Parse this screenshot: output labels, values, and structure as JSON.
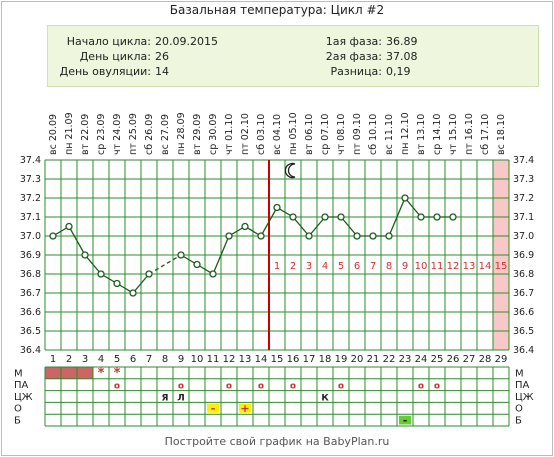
{
  "title": "Базальная температура: Цикл #2",
  "info": {
    "cycle_start_label": "Начало цикла:",
    "cycle_start_value": "20.09.2015",
    "cycle_day_label": "День цикла:",
    "cycle_day_value": "26",
    "ovulation_day_label": "День овуляции:",
    "ovulation_day_value": "14",
    "phase1_label": "1ая фаза:",
    "phase1_value": "36.89",
    "phase2_label": "2ая фаза:",
    "phase2_value": "37.08",
    "diff_label": "Разница:",
    "diff_value": "0,19"
  },
  "footer": "Постройте свой график на BabyPlan.ru",
  "colors": {
    "grid": "#2e8b2e",
    "line": "#1a5c1a",
    "marker": "#1a5c1a",
    "ovulation_line": "#cc0000",
    "phase2_numbers": "#cc3333",
    "today_band": "#f8c8c8",
    "menses_fill": "#cc6666",
    "minus_fill": "#ffee00",
    "plus_fill": "#ffee00",
    "green_fill": "#66cc33",
    "mark_red": "#cc3333"
  },
  "chart_data": {
    "type": "line",
    "title": "Базальная температура: Цикл #2",
    "x": [
      1,
      2,
      3,
      4,
      5,
      6,
      7,
      8,
      9,
      10,
      11,
      12,
      13,
      14,
      15,
      16,
      17,
      18,
      19,
      20,
      21,
      22,
      23,
      24,
      25,
      26,
      27,
      28,
      29
    ],
    "dates": [
      "20.09",
      "21.09",
      "22.09",
      "23.09",
      "24.09",
      "25.09",
      "26.09",
      "27.09",
      "28.09",
      "29.09",
      "30.09",
      "01.10",
      "02.10",
      "03.10",
      "04.10",
      "05.10",
      "06.10",
      "07.10",
      "08.10",
      "09.10",
      "10.10",
      "11.10",
      "12.10",
      "13.10",
      "14.10",
      "15.10",
      "16.10",
      "17.10",
      "18.10"
    ],
    "weekdays": [
      "вс",
      "пн",
      "вт",
      "ср",
      "чт",
      "пт",
      "сб",
      "вс",
      "пн",
      "вт",
      "ср",
      "чт",
      "пт",
      "сб",
      "вс",
      "пн",
      "вт",
      "ср",
      "чт",
      "пт",
      "сб",
      "вс",
      "пн",
      "вт",
      "ср",
      "чт",
      "пт",
      "сб",
      "вс"
    ],
    "series": [
      {
        "values": [
          37.0,
          37.05,
          36.9,
          36.8,
          36.75,
          36.7,
          36.8,
          null,
          36.9,
          36.85,
          36.8,
          37.0,
          37.05,
          37.0,
          37.15,
          37.1,
          37.0,
          37.1,
          37.1,
          37.0,
          37.0,
          37.0,
          37.2,
          37.1,
          37.1,
          37.1,
          null,
          null,
          null
        ]
      }
    ],
    "dashed_segments": [
      [
        7,
        9
      ]
    ],
    "ylim": [
      36.4,
      37.4
    ],
    "yticks": [
      "36.4",
      "36.5",
      "36.6",
      "36.7",
      "36.8",
      "36.9",
      "37.0",
      "37.1",
      "37.2",
      "37.3",
      "37.4"
    ],
    "ovulation_day": 14,
    "moon_day": 16,
    "today_day": 29,
    "phase2_numbers": [
      "1",
      "2",
      "3",
      "4",
      "5",
      "6",
      "7",
      "8",
      "9",
      "10",
      "11",
      "12",
      "13",
      "14",
      "15"
    ],
    "grid": true
  },
  "table": {
    "row_labels": [
      "М",
      "ПА",
      "ЦЖ",
      "О",
      "Б"
    ],
    "menses_days": [
      1,
      2,
      3
    ],
    "m_marks": [
      {
        "day": 4,
        "symbol": "*"
      },
      {
        "day": 5,
        "symbol": "*"
      }
    ],
    "pa_marks": [
      {
        "day": 5,
        "symbol": "о"
      },
      {
        "day": 9,
        "symbol": "о"
      },
      {
        "day": 12,
        "symbol": "о"
      },
      {
        "day": 14,
        "symbol": "о"
      },
      {
        "day": 16,
        "symbol": "о"
      },
      {
        "day": 19,
        "symbol": "о"
      },
      {
        "day": 24,
        "symbol": "о"
      },
      {
        "day": 25,
        "symbol": "о"
      }
    ],
    "cj_marks": [
      {
        "day": 8,
        "symbol": "Я"
      },
      {
        "day": 9,
        "symbol": "Л"
      },
      {
        "day": 18,
        "symbol": "К"
      }
    ],
    "o_marks": [
      {
        "day": 11,
        "symbol": "-"
      },
      {
        "day": 13,
        "symbol": "+"
      }
    ],
    "b_marks": [
      {
        "day": 23,
        "symbol": "-"
      }
    ]
  }
}
